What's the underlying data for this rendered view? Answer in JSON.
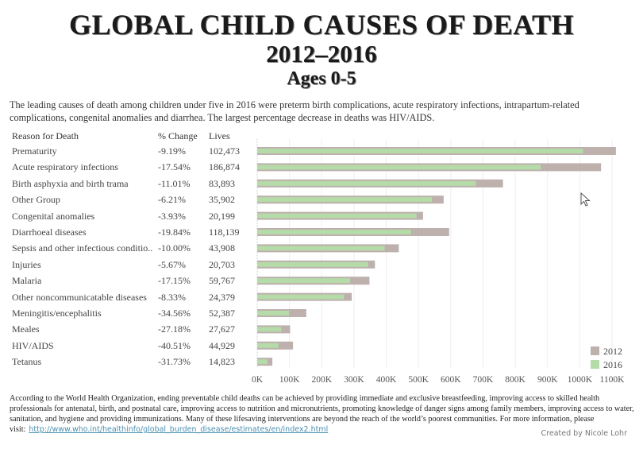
{
  "header": {
    "title": "GLOBAL CHILD CAUSES OF DEATH",
    "years": "2012–2016",
    "ages": "Ages 0-5",
    "intro": "The leading causes of death among children under five in 2016 were preterm birth complications, acute respiratory infections, intrapartum-related complications, congenital anomalies and diarrhea. The largest percentage decrease in deaths was HIV/AIDS."
  },
  "table": {
    "col_reason": "Reason for Death",
    "col_change": "% Change",
    "col_lives": "Lives",
    "rows": [
      {
        "reason": "Prematurity",
        "change": "-9.19%",
        "lives": "102,473"
      },
      {
        "reason": "Acute respiratory infections",
        "change": "-17.54%",
        "lives": "186,874"
      },
      {
        "reason": "Birth asphyxia and birth trama",
        "change": "-11.01%",
        "lives": "83,893"
      },
      {
        "reason": "Other Group",
        "change": "-6.21%",
        "lives": "35,902"
      },
      {
        "reason": "Congenital anomalies",
        "change": "-3.93%",
        "lives": "20,199"
      },
      {
        "reason": "Diarrhoeal diseases",
        "change": "-19.84%",
        "lives": "118,139"
      },
      {
        "reason": "Sepsis and other infectious conditio..",
        "change": "-10.00%",
        "lives": "43,908"
      },
      {
        "reason": "Injuries",
        "change": "-5.67%",
        "lives": "20,703"
      },
      {
        "reason": "Malaria",
        "change": "-17.15%",
        "lives": "59,767"
      },
      {
        "reason": "Other noncommunicatable diseases",
        "change": "-8.33%",
        "lives": "24,379"
      },
      {
        "reason": "Meningitis/encephalitis",
        "change": "-34.56%",
        "lives": "52,387"
      },
      {
        "reason": "Meales",
        "change": "-27.18%",
        "lives": "27,627"
      },
      {
        "reason": "HIV/AIDS",
        "change": "-40.51%",
        "lives": "44,929"
      },
      {
        "reason": "Tetanus",
        "change": "-31.73%",
        "lives": "14,823"
      }
    ]
  },
  "chart_data": {
    "type": "bar",
    "orientation": "horizontal",
    "title": "GLOBAL CHILD CAUSES OF DEATH 2012–2016 Ages 0-5",
    "xlabel": "",
    "ylabel": "Reason for Death",
    "categories": [
      "Prematurity",
      "Acute respiratory infections",
      "Birth asphyxia and birth trama",
      "Other Group",
      "Congenital anomalies",
      "Diarrhoeal diseases",
      "Sepsis and other infectious conditio..",
      "Injuries",
      "Malaria",
      "Other noncommunicatable diseases",
      "Meningitis/encephalitis",
      "Meales",
      "HIV/AIDS",
      "Tetanus"
    ],
    "series": [
      {
        "name": "2012",
        "color": "#bdb0ad",
        "values": [
          1112000,
          1066000,
          762000,
          578000,
          514000,
          595000,
          439000,
          365000,
          348000,
          293000,
          152000,
          102000,
          111000,
          47000
        ]
      },
      {
        "name": "2016",
        "color": "#b5dca8",
        "values": [
          1010000,
          879000,
          678000,
          542000,
          494000,
          477000,
          395000,
          344000,
          288000,
          269000,
          99000,
          75000,
          66000,
          32000
        ]
      }
    ],
    "xlim": [
      0,
      1100000
    ],
    "xticks": [
      "0K",
      "100K",
      "200K",
      "300K",
      "400K",
      "500K",
      "600K",
      "700K",
      "800K",
      "900K",
      "1000K",
      "1100K"
    ],
    "grid": true,
    "legend": {
      "position": "bottom-right",
      "entries": [
        "2012",
        "2016"
      ]
    }
  },
  "footer": {
    "text": "According to the World Health Organization, ending preventable child deaths can be achieved by providing immediate and exclusive breastfeeding, improving access to skilled health professionals for antenatal, birth, and postnatal care, improving access to nutrition and micronutrients, promoting knowledge of danger signs among family members, improving access to water, sanitation, and hygiene and providing immunizations. Many of these lifesaving interventions are beyond the reach of the world’s poorest communities. For more information, please visit:",
    "link": "http://www.who.int/healthinfo/global_burden_disease/estimates/en/index2.html",
    "credit": "Created by Nicole Lohr"
  },
  "icons": {
    "cursor": "mouse-pointer-icon"
  }
}
